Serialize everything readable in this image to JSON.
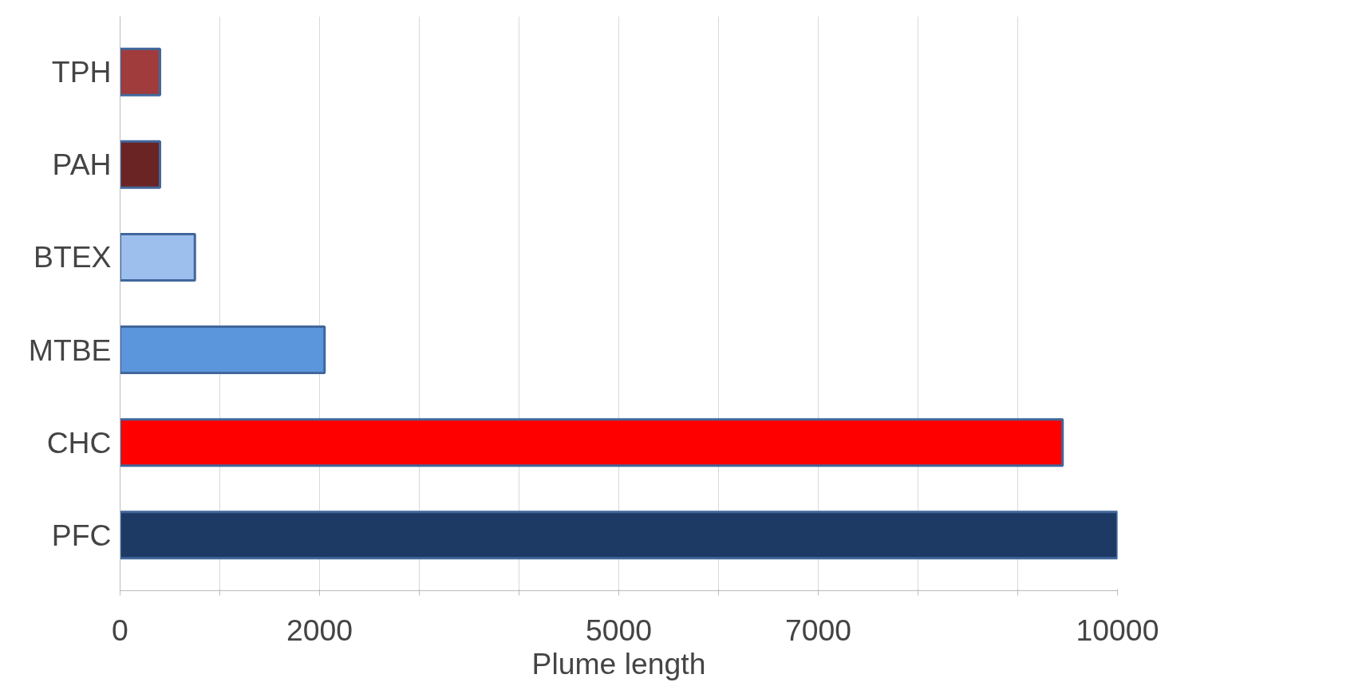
{
  "chart_data": {
    "type": "bar",
    "orientation": "horizontal",
    "xlabel": "Plume length",
    "categories": [
      "TPH",
      "PAH",
      "BTEX",
      "MTBE",
      "CHC",
      "PFC"
    ],
    "values": [
      400,
      400,
      750,
      2050,
      9450,
      10000
    ],
    "colors": [
      "#a03c3c",
      "#6b2424",
      "#9dbfee",
      "#5b96dd",
      "#ff0000",
      "#1c3a63"
    ],
    "xlim": [
      0,
      10000
    ],
    "xticks": [
      0,
      {
        "value": 1000,
        "label": null
      },
      2000,
      {
        "value": 3000,
        "label": null
      },
      {
        "value": 4000,
        "label": null
      },
      5000,
      {
        "value": 6000,
        "label": null
      },
      7000,
      {
        "value": 8000,
        "label": null
      },
      {
        "value": 9000,
        "label": null
      },
      10000
    ],
    "grid": "x"
  }
}
